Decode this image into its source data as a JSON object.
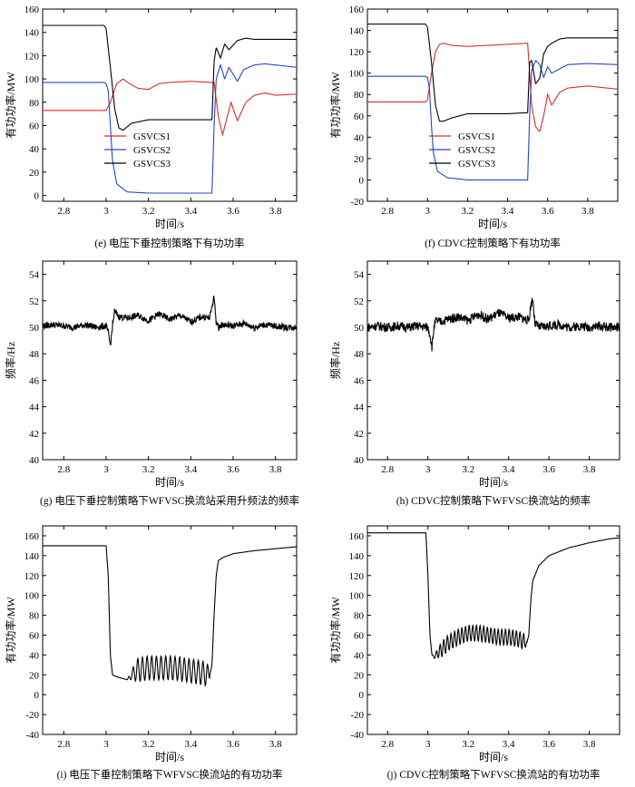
{
  "chart_data": [
    {
      "id": "e",
      "type": "line",
      "caption": "(e) 电压下垂控制策略下有功功率",
      "xlabel": "时间/s",
      "ylabel": "有功功率/MW",
      "xlim": [
        2.7,
        3.9
      ],
      "ylim": [
        -5,
        160
      ],
      "xticks": [
        2.8,
        3.0,
        3.2,
        3.4,
        3.6,
        3.8
      ],
      "yticks": [
        0,
        20,
        40,
        60,
        80,
        100,
        120,
        140,
        160
      ],
      "legend": {
        "entries": [
          "GSVCS1",
          "GSVCS2",
          "GSVCS3"
        ],
        "position": "center-left"
      },
      "series": [
        {
          "name": "GSVCS1",
          "color": "#e0282c",
          "x": [
            2.7,
            2.99,
            3.0,
            3.02,
            3.05,
            3.08,
            3.11,
            3.15,
            3.2,
            3.25,
            3.3,
            3.4,
            3.5,
            3.51,
            3.53,
            3.55,
            3.57,
            3.59,
            3.62,
            3.66,
            3.7,
            3.75,
            3.8,
            3.9
          ],
          "y": [
            73,
            73,
            73,
            80,
            96,
            100,
            96,
            92,
            91,
            96,
            97,
            98,
            97,
            97,
            68,
            52,
            66,
            80,
            64,
            80,
            86,
            88,
            86,
            87
          ]
        },
        {
          "name": "GSVCS2",
          "color": "#2444c8",
          "x": [
            2.7,
            2.99,
            3.0,
            3.01,
            3.02,
            3.03,
            3.05,
            3.1,
            3.2,
            3.3,
            3.4,
            3.495,
            3.5,
            3.51,
            3.52,
            3.54,
            3.56,
            3.58,
            3.6,
            3.62,
            3.65,
            3.7,
            3.75,
            3.8,
            3.9
          ],
          "y": [
            97,
            97,
            96,
            90,
            60,
            30,
            10,
            3,
            2,
            2,
            2,
            2,
            2,
            60,
            100,
            112,
            100,
            110,
            104,
            98,
            108,
            112,
            113,
            112,
            110
          ]
        },
        {
          "name": "GSVCS3",
          "color": "#000000",
          "x": [
            2.7,
            2.99,
            3.0,
            3.02,
            3.04,
            3.06,
            3.08,
            3.12,
            3.2,
            3.3,
            3.4,
            3.5,
            3.51,
            3.52,
            3.54,
            3.56,
            3.58,
            3.62,
            3.66,
            3.7,
            3.8,
            3.9
          ],
          "y": [
            146,
            146,
            143,
            110,
            75,
            58,
            56,
            62,
            65,
            65,
            65,
            65,
            115,
            127,
            118,
            130,
            125,
            133,
            135,
            134,
            134,
            134
          ]
        }
      ]
    },
    {
      "id": "f",
      "type": "line",
      "caption": "(f) CDVC控制策略下有功功率",
      "xlabel": "时间/s",
      "ylabel": "有功功率/MW",
      "xlim": [
        2.7,
        3.95
      ],
      "ylim": [
        -20,
        160
      ],
      "xticks": [
        2.8,
        3.0,
        3.2,
        3.4,
        3.6,
        3.8
      ],
      "yticks": [
        -20,
        0,
        20,
        40,
        60,
        80,
        100,
        120,
        140,
        160
      ],
      "legend": {
        "entries": [
          "GSVCS1",
          "GSVCS2",
          "GSVCS3"
        ],
        "position": "center-left"
      },
      "series": [
        {
          "name": "GSVCS1",
          "color": "#e0282c",
          "x": [
            2.7,
            2.99,
            3.0,
            3.02,
            3.04,
            3.06,
            3.08,
            3.12,
            3.2,
            3.3,
            3.4,
            3.5,
            3.51,
            3.52,
            3.54,
            3.56,
            3.58,
            3.6,
            3.62,
            3.66,
            3.7,
            3.8,
            3.95
          ],
          "y": [
            73,
            73,
            75,
            100,
            120,
            127,
            128,
            126,
            125,
            126,
            127,
            128,
            100,
            70,
            50,
            45,
            60,
            80,
            70,
            82,
            86,
            88,
            85
          ]
        },
        {
          "name": "GSVCS2",
          "color": "#2444c8",
          "x": [
            2.7,
            2.99,
            3.0,
            3.01,
            3.02,
            3.03,
            3.05,
            3.1,
            3.2,
            3.3,
            3.4,
            3.5,
            3.51,
            3.52,
            3.54,
            3.56,
            3.58,
            3.6,
            3.62,
            3.66,
            3.7,
            3.8,
            3.95
          ],
          "y": [
            97,
            97,
            96,
            85,
            50,
            25,
            8,
            2,
            0,
            0,
            0,
            0,
            60,
            102,
            112,
            108,
            96,
            106,
            100,
            104,
            108,
            109,
            108
          ]
        },
        {
          "name": "GSVCS3",
          "color": "#000000",
          "x": [
            2.7,
            2.99,
            3.0,
            3.02,
            3.04,
            3.06,
            3.08,
            3.12,
            3.2,
            3.3,
            3.4,
            3.5,
            3.51,
            3.52,
            3.54,
            3.56,
            3.58,
            3.6,
            3.62,
            3.66,
            3.7,
            3.8,
            3.95
          ],
          "y": [
            146,
            146,
            143,
            110,
            70,
            55,
            55,
            58,
            62,
            62,
            62,
            63,
            110,
            112,
            90,
            95,
            118,
            125,
            128,
            132,
            133,
            133,
            133
          ]
        }
      ]
    },
    {
      "id": "g",
      "type": "line",
      "caption": "(g) 电压下垂控制策略下WFVSC换流站采用升频法的频率",
      "xlabel": "时间/s",
      "ylabel": "频率/Hz",
      "xlim": [
        2.7,
        3.9
      ],
      "ylim": [
        40,
        55
      ],
      "xticks": [
        2.8,
        3.0,
        3.2,
        3.4,
        3.6,
        3.8
      ],
      "yticks": [
        40,
        42,
        44,
        46,
        48,
        50,
        52,
        54
      ],
      "series": [
        {
          "name": "",
          "color": "#000000",
          "x": [
            2.7,
            2.75,
            2.8,
            2.85,
            2.9,
            2.95,
            3.0,
            3.01,
            3.02,
            3.03,
            3.04,
            3.06,
            3.1,
            3.15,
            3.2,
            3.25,
            3.3,
            3.35,
            3.4,
            3.45,
            3.49,
            3.5,
            3.51,
            3.52,
            3.53,
            3.55,
            3.6,
            3.65,
            3.7,
            3.75,
            3.8,
            3.85,
            3.9
          ],
          "y": [
            50.1,
            50.2,
            50.1,
            50.0,
            50.2,
            50.0,
            50.1,
            49.6,
            48.6,
            50.1,
            51.2,
            50.8,
            50.7,
            50.9,
            50.5,
            51.0,
            50.6,
            50.9,
            50.4,
            50.8,
            50.7,
            51.6,
            52.3,
            50.4,
            50.0,
            50.2,
            50.1,
            50.3,
            50.0,
            50.2,
            50.1,
            50.0,
            50.0
          ],
          "noise": 0.25
        }
      ]
    },
    {
      "id": "h",
      "type": "line",
      "caption": "(h) CDVC控制策略下WFVSC换流站的频率",
      "xlabel": "时间/s",
      "ylabel": "频率/Hz",
      "xlim": [
        2.7,
        3.95
      ],
      "ylim": [
        40,
        55
      ],
      "xticks": [
        2.8,
        3.0,
        3.2,
        3.4,
        3.6,
        3.8
      ],
      "yticks": [
        40,
        42,
        44,
        46,
        48,
        50,
        52,
        54
      ],
      "series": [
        {
          "name": "",
          "color": "#000000",
          "x": [
            2.7,
            2.75,
            2.8,
            2.85,
            2.9,
            2.95,
            3.0,
            3.01,
            3.02,
            3.03,
            3.04,
            3.06,
            3.1,
            3.15,
            3.2,
            3.25,
            3.3,
            3.35,
            3.4,
            3.45,
            3.5,
            3.51,
            3.52,
            3.53,
            3.55,
            3.6,
            3.65,
            3.7,
            3.75,
            3.8,
            3.85,
            3.9,
            3.95
          ],
          "y": [
            50.0,
            50.1,
            50.0,
            50.1,
            50.0,
            50.1,
            50.0,
            49.5,
            48.5,
            50.0,
            50.5,
            50.4,
            50.6,
            50.8,
            50.5,
            51.0,
            50.6,
            51.1,
            50.7,
            50.8,
            50.5,
            51.7,
            52.2,
            50.3,
            50.0,
            50.1,
            50.2,
            50.0,
            50.1,
            50.0,
            50.1,
            50.0,
            50.0
          ],
          "noise": 0.35
        }
      ]
    },
    {
      "id": "i",
      "type": "line",
      "caption": "(i) 电压下垂控制策略下WFVSC换流站的有功功率",
      "xlabel": "时间/s",
      "ylabel": "有功功率/MW",
      "xlim": [
        2.7,
        3.9
      ],
      "ylim": [
        -40,
        170
      ],
      "xticks": [
        2.8,
        3.0,
        3.2,
        3.4,
        3.6,
        3.8
      ],
      "yticks": [
        -40,
        -20,
        0,
        20,
        40,
        60,
        80,
        100,
        120,
        140,
        160
      ],
      "series": [
        {
          "name": "",
          "color": "#000000",
          "x": [
            2.7,
            2.8,
            2.9,
            3.0,
            3.01,
            3.02,
            3.03,
            3.05,
            3.1,
            3.12,
            3.15,
            3.2,
            3.25,
            3.3,
            3.35,
            3.4,
            3.45,
            3.49,
            3.5,
            3.51,
            3.52,
            3.53,
            3.55,
            3.6,
            3.7,
            3.8,
            3.9
          ],
          "y": [
            150,
            150,
            150,
            150,
            120,
            40,
            20,
            18,
            15,
            20,
            25,
            27,
            27,
            27,
            26,
            24,
            22,
            20,
            30,
            80,
            120,
            135,
            138,
            142,
            145,
            147,
            149
          ],
          "osc": {
            "from": 3.1,
            "to": 3.49,
            "amp": 12,
            "period": 0.022
          }
        }
      ]
    },
    {
      "id": "j",
      "type": "line",
      "caption": "(j) CDVC控制策略下WFVSC换流站的有功功率",
      "xlabel": "时间/s",
      "ylabel": "有功功率/MW",
      "xlim": [
        2.7,
        3.95
      ],
      "ylim": [
        -40,
        170
      ],
      "xticks": [
        2.8,
        3.0,
        3.2,
        3.4,
        3.6,
        3.8
      ],
      "yticks": [
        -40,
        -20,
        0,
        20,
        40,
        60,
        80,
        100,
        120,
        140,
        160
      ],
      "series": [
        {
          "name": "",
          "color": "#000000",
          "x": [
            2.7,
            2.8,
            2.9,
            2.99,
            3.0,
            3.01,
            3.02,
            3.03,
            3.05,
            3.1,
            3.15,
            3.2,
            3.25,
            3.3,
            3.35,
            3.4,
            3.45,
            3.49,
            3.5,
            3.51,
            3.52,
            3.53,
            3.55,
            3.6,
            3.7,
            3.8,
            3.9,
            3.95
          ],
          "y": [
            163,
            163,
            163,
            163,
            120,
            60,
            40,
            38,
            42,
            52,
            58,
            62,
            62,
            60,
            58,
            58,
            56,
            52,
            60,
            95,
            115,
            120,
            130,
            140,
            148,
            153,
            157,
            158
          ],
          "osc": {
            "from": 3.02,
            "to": 3.49,
            "amp": 8,
            "period": 0.018
          }
        }
      ]
    }
  ]
}
